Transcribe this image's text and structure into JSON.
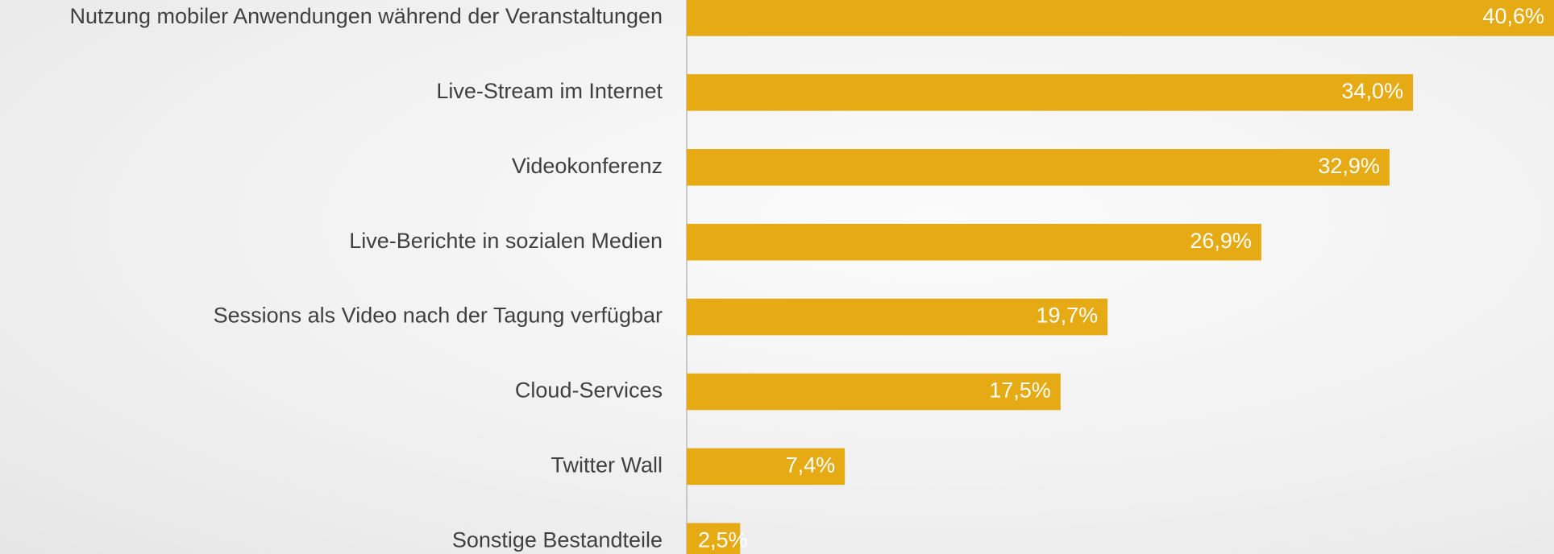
{
  "chart_data": {
    "type": "bar",
    "orientation": "horizontal",
    "categories": [
      "Nutzung mobiler Anwendungen während der Veranstaltungen",
      "Live-Stream im Internet",
      "Videokonferenz",
      "Live-Berichte in sozialen Medien",
      "Sessions als Video nach der Tagung verfügbar",
      "Cloud-Services",
      "Twitter Wall",
      "Sonstige Bestandteile"
    ],
    "values": [
      40.6,
      34.0,
      32.9,
      26.9,
      19.7,
      17.5,
      7.4,
      2.5
    ],
    "value_labels": [
      "40,6%",
      "34,0%",
      "32,9%",
      "26,9%",
      "19,7%",
      "17,5%",
      "7,4%",
      "2,5%"
    ],
    "color": "#e6ab14"
  }
}
